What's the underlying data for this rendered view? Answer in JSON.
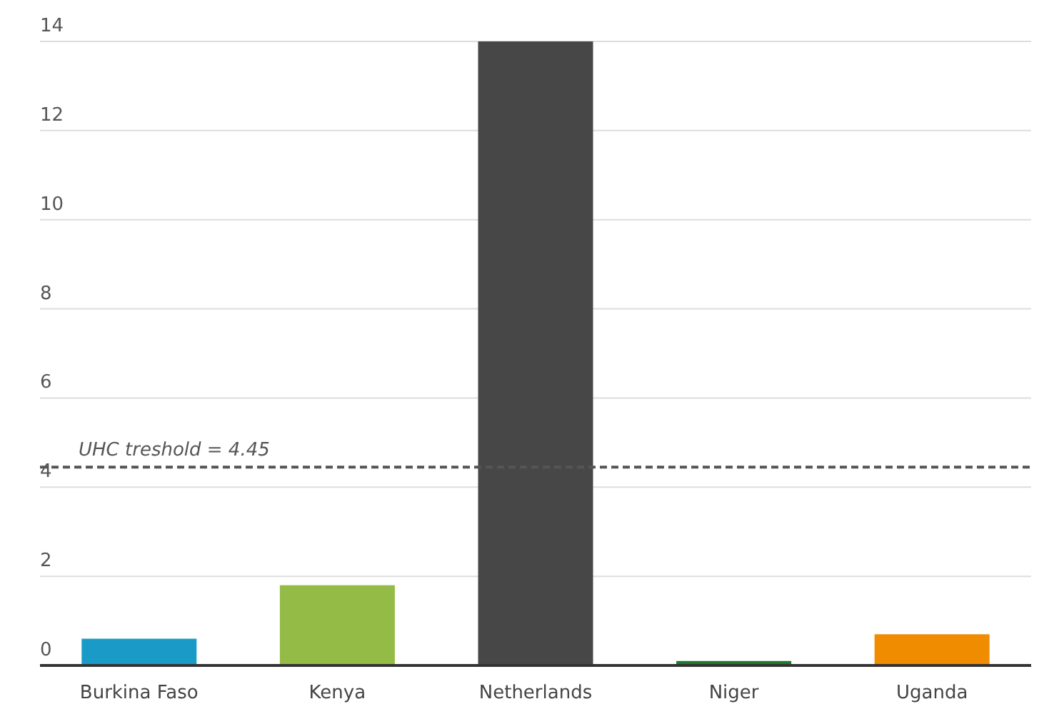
{
  "chart_data": {
    "type": "bar",
    "categories": [
      "Burkina Faso",
      "Kenya",
      "Netherlands",
      "Niger",
      "Uganda"
    ],
    "values": [
      0.6,
      1.8,
      14,
      0.1,
      0.7
    ],
    "colors": [
      "#1a9bc7",
      "#93bb45",
      "#474747",
      "#1e7a2e",
      "#f08c00"
    ],
    "ylim": [
      0,
      14
    ],
    "yticks": [
      0,
      2,
      4,
      6,
      8,
      10,
      12,
      14
    ],
    "grid": "y",
    "ref_lines": [
      {
        "axis": "y",
        "value": 4.45,
        "label": "UHC treshold = 4.45",
        "color": "#555555",
        "line_style": "dashed"
      }
    ]
  }
}
